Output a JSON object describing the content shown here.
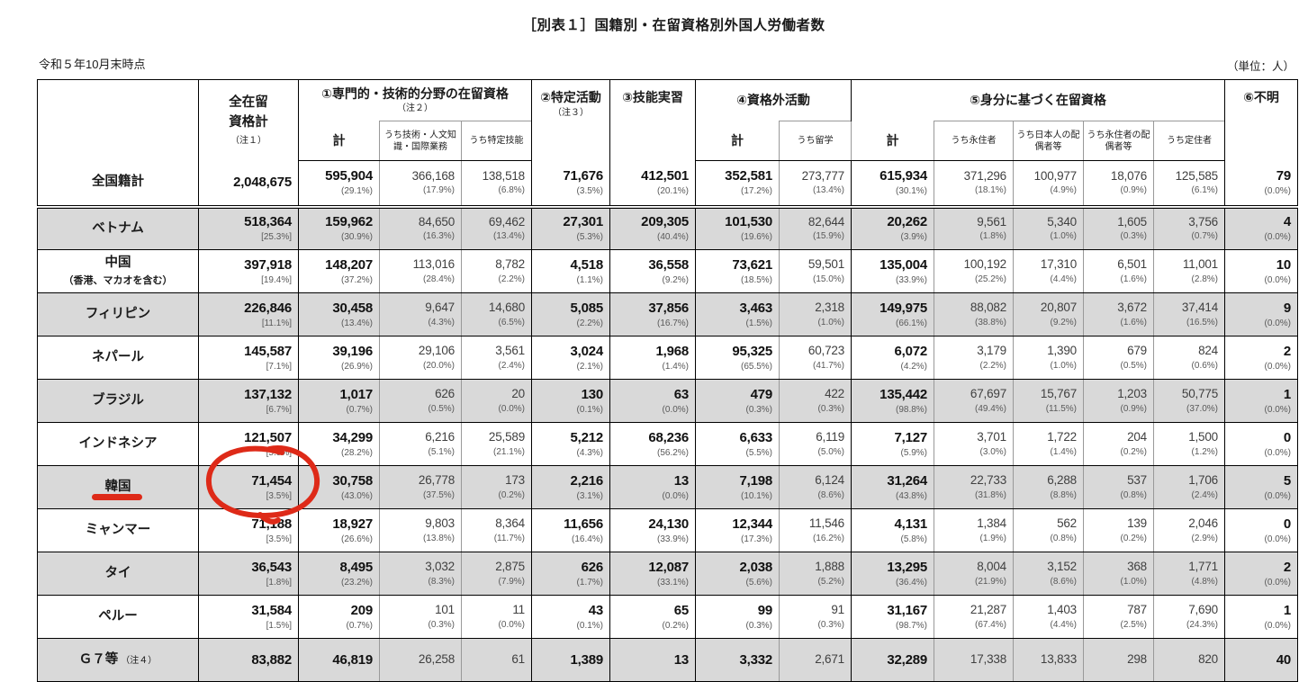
{
  "page": {
    "title": "［別表１］国籍別・在留資格別外国人労働者数",
    "date_note": "令和５年10月末時点",
    "unit_note": "（単位：人）"
  },
  "colors": {
    "annotation_red": "#de2a18",
    "row_shade": "#d9d9d9",
    "grid_black": "#000000",
    "grid_gray": "#999999"
  },
  "header": {
    "total_col": {
      "line1": "全在留",
      "line2": "資格計",
      "note": "（注１）"
    },
    "groups": [
      {
        "label": "①専門的・技術的分野の在留資格",
        "note": "（注２）",
        "subs": [
          "計",
          "うち技術・人文知識・国際業務",
          "うち特定技能"
        ]
      },
      {
        "label": "②特定活動",
        "note": "（注３）"
      },
      {
        "label": "③技能実習"
      },
      {
        "label": "④資格外活動",
        "subs": [
          "計",
          "うち留学"
        ]
      },
      {
        "label": "⑤身分に基づく在留資格",
        "subs": [
          "計",
          "うち永住者",
          "うち日本人の配偶者等",
          "うち永住者の配偶者等",
          "うち定住者"
        ]
      },
      {
        "label": "⑥不明"
      }
    ]
  },
  "table": {
    "emphasis_columns": [
      0,
      1,
      4,
      5,
      6,
      8,
      13
    ],
    "rows": [
      {
        "label": "全国籍計",
        "type": "total",
        "shade": false,
        "cells": [
          {
            "v": "2,048,675",
            "p": ""
          },
          {
            "v": "595,904",
            "p": "(29.1%)"
          },
          {
            "v": "366,168",
            "p": "(17.9%)"
          },
          {
            "v": "138,518",
            "p": "(6.8%)"
          },
          {
            "v": "71,676",
            "p": "(3.5%)"
          },
          {
            "v": "412,501",
            "p": "(20.1%)"
          },
          {
            "v": "352,581",
            "p": "(17.2%)"
          },
          {
            "v": "273,777",
            "p": "(13.4%)"
          },
          {
            "v": "615,934",
            "p": "(30.1%)"
          },
          {
            "v": "371,296",
            "p": "(18.1%)"
          },
          {
            "v": "100,977",
            "p": "(4.9%)"
          },
          {
            "v": "18,076",
            "p": "(0.9%)"
          },
          {
            "v": "125,585",
            "p": "(6.1%)"
          },
          {
            "v": "79",
            "p": "(0.0%)"
          }
        ]
      },
      {
        "label": "ベトナム",
        "shade": true,
        "cells": [
          {
            "v": "518,364",
            "p": "[25.3%]"
          },
          {
            "v": "159,962",
            "p": "(30.9%)"
          },
          {
            "v": "84,650",
            "p": "(16.3%)"
          },
          {
            "v": "69,462",
            "p": "(13.4%)"
          },
          {
            "v": "27,301",
            "p": "(5.3%)"
          },
          {
            "v": "209,305",
            "p": "(40.4%)"
          },
          {
            "v": "101,530",
            "p": "(19.6%)"
          },
          {
            "v": "82,644",
            "p": "(15.9%)"
          },
          {
            "v": "20,262",
            "p": "(3.9%)"
          },
          {
            "v": "9,561",
            "p": "(1.8%)"
          },
          {
            "v": "5,340",
            "p": "(1.0%)"
          },
          {
            "v": "1,605",
            "p": "(0.3%)"
          },
          {
            "v": "3,756",
            "p": "(0.7%)"
          },
          {
            "v": "4",
            "p": "(0.0%)"
          }
        ]
      },
      {
        "label": "中国",
        "label2": "（香港、マカオを含む）",
        "shade": false,
        "cells": [
          {
            "v": "397,918",
            "p": "[19.4%]"
          },
          {
            "v": "148,207",
            "p": "(37.2%)"
          },
          {
            "v": "113,016",
            "p": "(28.4%)"
          },
          {
            "v": "8,782",
            "p": "(2.2%)"
          },
          {
            "v": "4,518",
            "p": "(1.1%)"
          },
          {
            "v": "36,558",
            "p": "(9.2%)"
          },
          {
            "v": "73,621",
            "p": "(18.5%)"
          },
          {
            "v": "59,501",
            "p": "(15.0%)"
          },
          {
            "v": "135,004",
            "p": "(33.9%)"
          },
          {
            "v": "100,192",
            "p": "(25.2%)"
          },
          {
            "v": "17,310",
            "p": "(4.4%)"
          },
          {
            "v": "6,501",
            "p": "(1.6%)"
          },
          {
            "v": "11,001",
            "p": "(2.8%)"
          },
          {
            "v": "10",
            "p": "(0.0%)"
          }
        ]
      },
      {
        "label": "フィリピン",
        "shade": true,
        "cells": [
          {
            "v": "226,846",
            "p": "[11.1%]"
          },
          {
            "v": "30,458",
            "p": "(13.4%)"
          },
          {
            "v": "9,647",
            "p": "(4.3%)"
          },
          {
            "v": "14,680",
            "p": "(6.5%)"
          },
          {
            "v": "5,085",
            "p": "(2.2%)"
          },
          {
            "v": "37,856",
            "p": "(16.7%)"
          },
          {
            "v": "3,463",
            "p": "(1.5%)"
          },
          {
            "v": "2,318",
            "p": "(1.0%)"
          },
          {
            "v": "149,975",
            "p": "(66.1%)"
          },
          {
            "v": "88,082",
            "p": "(38.8%)"
          },
          {
            "v": "20,807",
            "p": "(9.2%)"
          },
          {
            "v": "3,672",
            "p": "(1.6%)"
          },
          {
            "v": "37,414",
            "p": "(16.5%)"
          },
          {
            "v": "9",
            "p": "(0.0%)"
          }
        ]
      },
      {
        "label": "ネパール",
        "shade": false,
        "cells": [
          {
            "v": "145,587",
            "p": "[7.1%]"
          },
          {
            "v": "39,196",
            "p": "(26.9%)"
          },
          {
            "v": "29,106",
            "p": "(20.0%)"
          },
          {
            "v": "3,561",
            "p": "(2.4%)"
          },
          {
            "v": "3,024",
            "p": "(2.1%)"
          },
          {
            "v": "1,968",
            "p": "(1.4%)"
          },
          {
            "v": "95,325",
            "p": "(65.5%)"
          },
          {
            "v": "60,723",
            "p": "(41.7%)"
          },
          {
            "v": "6,072",
            "p": "(4.2%)"
          },
          {
            "v": "3,179",
            "p": "(2.2%)"
          },
          {
            "v": "1,390",
            "p": "(1.0%)"
          },
          {
            "v": "679",
            "p": "(0.5%)"
          },
          {
            "v": "824",
            "p": "(0.6%)"
          },
          {
            "v": "2",
            "p": "(0.0%)"
          }
        ]
      },
      {
        "label": "ブラジル",
        "shade": true,
        "cells": [
          {
            "v": "137,132",
            "p": "[6.7%]"
          },
          {
            "v": "1,017",
            "p": "(0.7%)"
          },
          {
            "v": "626",
            "p": "(0.5%)"
          },
          {
            "v": "20",
            "p": "(0.0%)"
          },
          {
            "v": "130",
            "p": "(0.1%)"
          },
          {
            "v": "63",
            "p": "(0.0%)"
          },
          {
            "v": "479",
            "p": "(0.3%)"
          },
          {
            "v": "422",
            "p": "(0.3%)"
          },
          {
            "v": "135,442",
            "p": "(98.8%)"
          },
          {
            "v": "67,697",
            "p": "(49.4%)"
          },
          {
            "v": "15,767",
            "p": "(11.5%)"
          },
          {
            "v": "1,203",
            "p": "(0.9%)"
          },
          {
            "v": "50,775",
            "p": "(37.0%)"
          },
          {
            "v": "1",
            "p": "(0.0%)"
          }
        ]
      },
      {
        "label": "インドネシア",
        "shade": false,
        "cells": [
          {
            "v": "121,507",
            "p": "[5.9%]"
          },
          {
            "v": "34,299",
            "p": "(28.2%)"
          },
          {
            "v": "6,216",
            "p": "(5.1%)"
          },
          {
            "v": "25,589",
            "p": "(21.1%)"
          },
          {
            "v": "5,212",
            "p": "(4.3%)"
          },
          {
            "v": "68,236",
            "p": "(56.2%)"
          },
          {
            "v": "6,633",
            "p": "(5.5%)"
          },
          {
            "v": "6,119",
            "p": "(5.0%)"
          },
          {
            "v": "7,127",
            "p": "(5.9%)"
          },
          {
            "v": "3,701",
            "p": "(3.0%)"
          },
          {
            "v": "1,722",
            "p": "(1.4%)"
          },
          {
            "v": "204",
            "p": "(0.2%)"
          },
          {
            "v": "1,500",
            "p": "(1.2%)"
          },
          {
            "v": "0",
            "p": "(0.0%)"
          }
        ]
      },
      {
        "label": "韓国",
        "shade": true,
        "annotated": true,
        "cells": [
          {
            "v": "71,454",
            "p": "[3.5%]"
          },
          {
            "v": "30,758",
            "p": "(43.0%)"
          },
          {
            "v": "26,778",
            "p": "(37.5%)"
          },
          {
            "v": "173",
            "p": "(0.2%)"
          },
          {
            "v": "2,216",
            "p": "(3.1%)"
          },
          {
            "v": "13",
            "p": "(0.0%)"
          },
          {
            "v": "7,198",
            "p": "(10.1%)"
          },
          {
            "v": "6,124",
            "p": "(8.6%)"
          },
          {
            "v": "31,264",
            "p": "(43.8%)"
          },
          {
            "v": "22,733",
            "p": "(31.8%)"
          },
          {
            "v": "6,288",
            "p": "(8.8%)"
          },
          {
            "v": "537",
            "p": "(0.8%)"
          },
          {
            "v": "1,706",
            "p": "(2.4%)"
          },
          {
            "v": "5",
            "p": "(0.0%)"
          }
        ]
      },
      {
        "label": "ミャンマー",
        "shade": false,
        "cells": [
          {
            "v": "71,188",
            "p": "[3.5%]"
          },
          {
            "v": "18,927",
            "p": "(26.6%)"
          },
          {
            "v": "9,803",
            "p": "(13.8%)"
          },
          {
            "v": "8,364",
            "p": "(11.7%)"
          },
          {
            "v": "11,656",
            "p": "(16.4%)"
          },
          {
            "v": "24,130",
            "p": "(33.9%)"
          },
          {
            "v": "12,344",
            "p": "(17.3%)"
          },
          {
            "v": "11,546",
            "p": "(16.2%)"
          },
          {
            "v": "4,131",
            "p": "(5.8%)"
          },
          {
            "v": "1,384",
            "p": "(1.9%)"
          },
          {
            "v": "562",
            "p": "(0.8%)"
          },
          {
            "v": "139",
            "p": "(0.2%)"
          },
          {
            "v": "2,046",
            "p": "(2.9%)"
          },
          {
            "v": "0",
            "p": "(0.0%)"
          }
        ]
      },
      {
        "label": "タイ",
        "shade": true,
        "cells": [
          {
            "v": "36,543",
            "p": "[1.8%]"
          },
          {
            "v": "8,495",
            "p": "(23.2%)"
          },
          {
            "v": "3,032",
            "p": "(8.3%)"
          },
          {
            "v": "2,875",
            "p": "(7.9%)"
          },
          {
            "v": "626",
            "p": "(1.7%)"
          },
          {
            "v": "12,087",
            "p": "(33.1%)"
          },
          {
            "v": "2,038",
            "p": "(5.6%)"
          },
          {
            "v": "1,888",
            "p": "(5.2%)"
          },
          {
            "v": "13,295",
            "p": "(36.4%)"
          },
          {
            "v": "8,004",
            "p": "(21.9%)"
          },
          {
            "v": "3,152",
            "p": "(8.6%)"
          },
          {
            "v": "368",
            "p": "(1.0%)"
          },
          {
            "v": "1,771",
            "p": "(4.8%)"
          },
          {
            "v": "2",
            "p": "(0.0%)"
          }
        ]
      },
      {
        "label": "ペルー",
        "shade": false,
        "cells": [
          {
            "v": "31,584",
            "p": "[1.5%]"
          },
          {
            "v": "209",
            "p": "(0.7%)"
          },
          {
            "v": "101",
            "p": "(0.3%)"
          },
          {
            "v": "11",
            "p": "(0.0%)"
          },
          {
            "v": "43",
            "p": "(0.1%)"
          },
          {
            "v": "65",
            "p": "(0.2%)"
          },
          {
            "v": "99",
            "p": "(0.3%)"
          },
          {
            "v": "91",
            "p": "(0.3%)"
          },
          {
            "v": "31,167",
            "p": "(98.7%)"
          },
          {
            "v": "21,287",
            "p": "(67.4%)"
          },
          {
            "v": "1,403",
            "p": "(4.4%)"
          },
          {
            "v": "787",
            "p": "(2.5%)"
          },
          {
            "v": "7,690",
            "p": "(24.3%)"
          },
          {
            "v": "1",
            "p": "(0.0%)"
          }
        ]
      },
      {
        "label": "Ｇ７等",
        "note": "（注４）",
        "shade": true,
        "cells": [
          {
            "v": "83,882",
            "p": ""
          },
          {
            "v": "46,819",
            "p": ""
          },
          {
            "v": "26,258",
            "p": ""
          },
          {
            "v": "61",
            "p": ""
          },
          {
            "v": "1,389",
            "p": ""
          },
          {
            "v": "13",
            "p": ""
          },
          {
            "v": "3,332",
            "p": ""
          },
          {
            "v": "2,671",
            "p": ""
          },
          {
            "v": "32,289",
            "p": ""
          },
          {
            "v": "17,338",
            "p": ""
          },
          {
            "v": "13,833",
            "p": ""
          },
          {
            "v": "298",
            "p": ""
          },
          {
            "v": "820",
            "p": ""
          },
          {
            "v": "40",
            "p": ""
          }
        ]
      }
    ]
  },
  "annotations": {
    "circle": {
      "type": "hand-drawn-circle",
      "target": "韓国 全在留資格計 71,454 [3.5%]"
    },
    "underline": {
      "type": "hand-drawn-underline",
      "target": "韓国"
    }
  }
}
